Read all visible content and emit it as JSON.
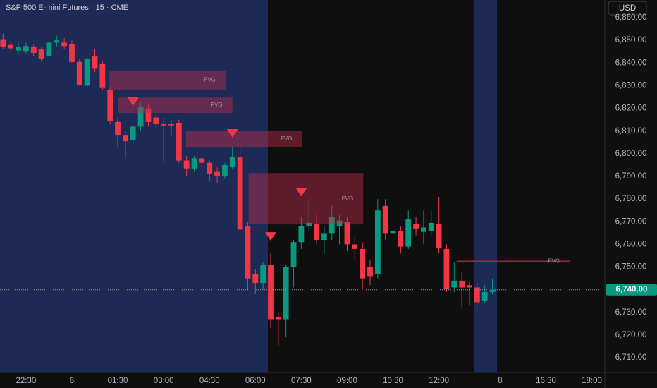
{
  "chart_data": {
    "type": "candlestick",
    "title": "S&P 500 E-mini Futures · 15 · CME",
    "currency": "USD",
    "up_color": "#089981",
    "down_color": "#f23645",
    "open": [
      6850.5,
      6848,
      6845.5,
      6845,
      6847,
      6846,
      6843,
      6849,
      6849,
      6848.5,
      6840.5,
      6830,
      6843,
      6839.5,
      6828,
      6814,
      6808,
      6806,
      6812,
      6820,
      6816,
      6813,
      6813,
      6813.5,
      6797,
      6793.5,
      6798,
      6796,
      6792,
      6790,
      6794,
      6798.5,
      6768,
      6747,
      6743,
      6751,
      6728,
      6727,
      6750,
      6761,
      6768,
      6769,
      6762,
      6765,
      6768,
      6770,
      6760,
      6758,
      6750,
      6747,
      6777,
      6765,
      6766,
      6759,
      6769,
      6765.5,
      6766,
      6769,
      6758,
      6741,
      6744,
      6742,
      6741,
      6735,
      6739
    ],
    "high": [
      6853,
      6849.5,
      6849,
      6849,
      6848,
      6847,
      6851,
      6852,
      6851,
      6850,
      6842,
      6843,
      6846,
      6841,
      6829,
      6816,
      6810,
      6813,
      6823,
      6822,
      6818,
      6816,
      6815,
      6815,
      6799,
      6799,
      6800,
      6797,
      6794,
      6796,
      6803,
      6804,
      6770,
      6749,
      6752,
      6756,
      6730,
      6751,
      6762,
      6772,
      6779,
      6773,
      6768,
      6777,
      6773,
      6772,
      6764,
      6761,
      6753,
      6780,
      6780,
      6770,
      6768,
      6775,
      6772,
      6775,
      6775,
      6781,
      6760,
      6752,
      6748,
      6744,
      6743,
      6742,
      6745
    ],
    "low": [
      6846,
      6845,
      6844,
      6844,
      6843,
      6841,
      6842,
      6847,
      6846,
      6840,
      6830,
      6829,
      6836,
      6828,
      6813,
      6803,
      6798,
      6804,
      6810,
      6812,
      6811,
      6796,
      6808,
      6796,
      6790,
      6792,
      6794,
      6788,
      6787,
      6789,
      6793,
      6765,
      6740,
      6738,
      6740,
      6723,
      6715,
      6719,
      6741,
      6758,
      6766,
      6760,
      6756,
      6762,
      6760,
      6757,
      6753,
      6740,
      6742,
      6745,
      6762,
      6762,
      6756,
      6758,
      6764,
      6760,
      6764,
      6756,
      6739,
      6739,
      6732,
      6733,
      6733,
      6734,
      6738
    ],
    "close": [
      6847,
      6846.5,
      6847,
      6847.5,
      6844.5,
      6842,
      6849,
      6850,
      6847.5,
      6840.5,
      6830.5,
      6842,
      6837.5,
      6829,
      6814.5,
      6808,
      6805.5,
      6812,
      6820.5,
      6814,
      6813,
      6812.5,
      6812.5,
      6797,
      6793.5,
      6798,
      6796,
      6791,
      6790,
      6795,
      6798.5,
      6766.5,
      6745,
      6743,
      6751,
      6727,
      6727,
      6750,
      6761,
      6768,
      6769.5,
      6762,
      6765,
      6772,
      6770.5,
      6760,
      6758,
      6745,
      6746,
      6775,
      6765,
      6766,
      6759,
      6771,
      6767,
      6767.5,
      6769.5,
      6758.5,
      6740.5,
      6744,
      6741,
      6741,
      6734.5,
      6739,
      6740
    ],
    "xlim": [
      -0.4,
      78.7
    ],
    "xticks": [
      {
        "value": 3,
        "label": "22:30"
      },
      {
        "value": 9,
        "label": "6"
      },
      {
        "value": 15,
        "label": "01:30"
      },
      {
        "value": 21,
        "label": "03:00"
      },
      {
        "value": 27,
        "label": "04:30"
      },
      {
        "value": 33,
        "label": "06:00"
      },
      {
        "value": 39,
        "label": "07:30"
      },
      {
        "value": 45,
        "label": "09:00"
      },
      {
        "value": 51,
        "label": "10:30"
      },
      {
        "value": 57,
        "label": "12:00"
      },
      {
        "value": 65,
        "label": "8"
      },
      {
        "value": 71,
        "label": "16:30"
      },
      {
        "value": 77,
        "label": "18:00"
      }
    ],
    "ylim": [
      6703.5,
      6867.8
    ],
    "yticks": [
      {
        "value": 6710,
        "label": "6,710.00"
      },
      {
        "value": 6720,
        "label": "6,720.00"
      },
      {
        "value": 6730,
        "label": "6,730.00"
      },
      {
        "value": 6750,
        "label": "6,750.00"
      },
      {
        "value": 6760,
        "label": "6,760.00"
      },
      {
        "value": 6770,
        "label": "6,770.00"
      },
      {
        "value": 6780,
        "label": "6,780.00"
      },
      {
        "value": 6790,
        "label": "6,790.00"
      },
      {
        "value": 6800,
        "label": "6,800.00"
      },
      {
        "value": 6810,
        "label": "6,810.00"
      },
      {
        "value": 6820,
        "label": "6,820.00"
      },
      {
        "value": 6830,
        "label": "6,830.00"
      },
      {
        "value": 6840,
        "label": "6,840.00"
      },
      {
        "value": 6850,
        "label": "6,850.00"
      },
      {
        "value": 6860,
        "label": "6,860.00"
      }
    ],
    "last_price": {
      "value": 6740,
      "label": "6,740.00"
    },
    "reference_lines": [
      6825
    ],
    "zones": [
      {
        "text": "FVG",
        "x": [
          13.9,
          29.1
        ],
        "y": [
          6828.3,
          6836.7
        ]
      },
      {
        "text": "FVG",
        "x": [
          15,
          30
        ],
        "y": [
          6818,
          6824.8
        ]
      },
      {
        "text": "FVG",
        "x": [
          23.9,
          39.1
        ],
        "y": [
          6803,
          6810.2
        ]
      },
      {
        "text": "FVG",
        "x": [
          32.1,
          47.1
        ],
        "y": [
          6768.8,
          6791.5
        ]
      },
      {
        "text": "FVG",
        "x": [
          59.3,
          74.1
        ],
        "y": [
          6752.6,
          6752.6
        ]
      }
    ],
    "markers": [
      {
        "x": 17,
        "y": 6823
      },
      {
        "x": 30,
        "y": 6809
      },
      {
        "x": 39,
        "y": 6783
      },
      {
        "x": 35,
        "y": 6763.5
      }
    ]
  }
}
